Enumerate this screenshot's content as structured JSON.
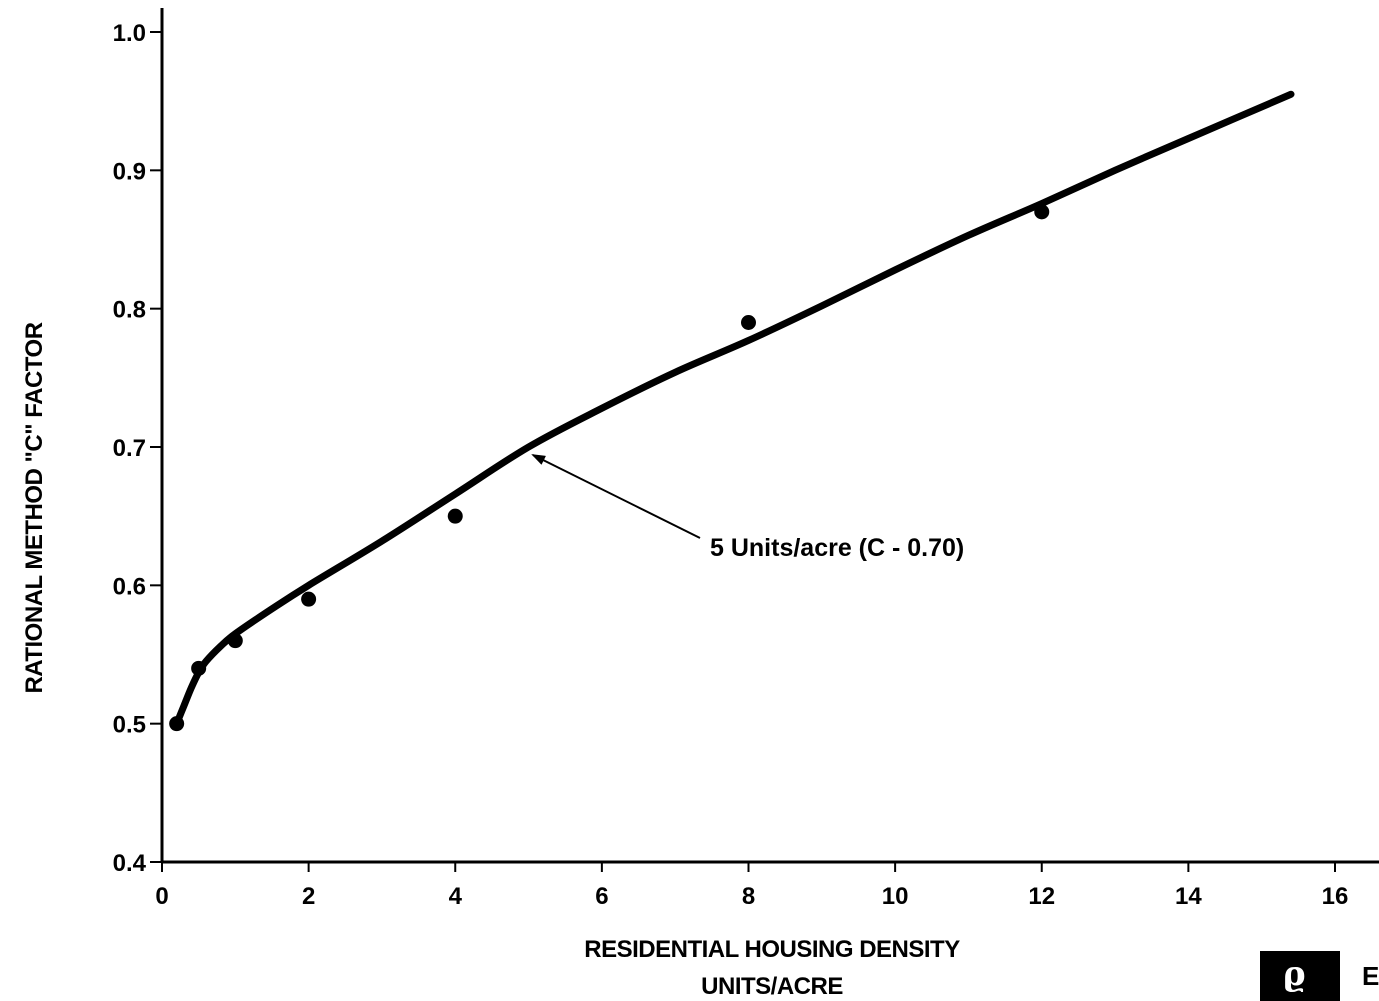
{
  "chart_data": {
    "type": "line",
    "title": "",
    "xlabel_lines": [
      "RESIDENTIAL HOUSING DENSITY",
      "UNITS/ACRE"
    ],
    "ylabel": "RATIONAL METHOD \"C\" FACTOR",
    "xlim": [
      0,
      16
    ],
    "ylim": [
      0.4,
      1.0
    ],
    "x_ticks": [
      0,
      2,
      4,
      6,
      8,
      10,
      12,
      14,
      16
    ],
    "y_ticks": [
      0.4,
      0.5,
      0.6,
      0.7,
      0.8,
      0.9,
      1.0
    ],
    "x_tick_labels": [
      "0",
      "2",
      "4",
      "6",
      "8",
      "10",
      "12",
      "14",
      "16"
    ],
    "y_tick_labels": [
      "0.4",
      "0.5",
      "0.6",
      "0.7",
      "0.8",
      "0.9",
      "1.0"
    ],
    "grid": false,
    "legend": "none",
    "series": [
      {
        "kind": "points",
        "x": [
          0.2,
          0.5,
          1.0,
          2.0,
          4.0,
          8.0,
          12.0
        ],
        "y": [
          0.5,
          0.54,
          0.56,
          0.59,
          0.65,
          0.79,
          0.87
        ]
      },
      {
        "kind": "fitted_curve",
        "x": [
          0.2,
          0.3,
          0.4,
          0.5,
          0.6,
          0.8,
          1.0,
          1.5,
          2.0,
          3.0,
          4.0,
          5.0,
          6.0,
          7.0,
          8.0,
          9.0,
          10.0,
          11.0,
          12.0,
          13.0,
          14.0,
          15.4
        ],
        "y": [
          0.5,
          0.513,
          0.526,
          0.537,
          0.545,
          0.556,
          0.565,
          0.583,
          0.6,
          0.632,
          0.666,
          0.7,
          0.728,
          0.754,
          0.777,
          0.802,
          0.828,
          0.853,
          0.876,
          0.9,
          0.923,
          0.955
        ]
      }
    ],
    "annotations": [
      {
        "text": "5 Units/acre (C - 0.70)",
        "points_to": {
          "x": 5.0,
          "y": 0.7
        }
      }
    ]
  },
  "logo": {
    "glyph": "ϱ",
    "letter": "E"
  }
}
